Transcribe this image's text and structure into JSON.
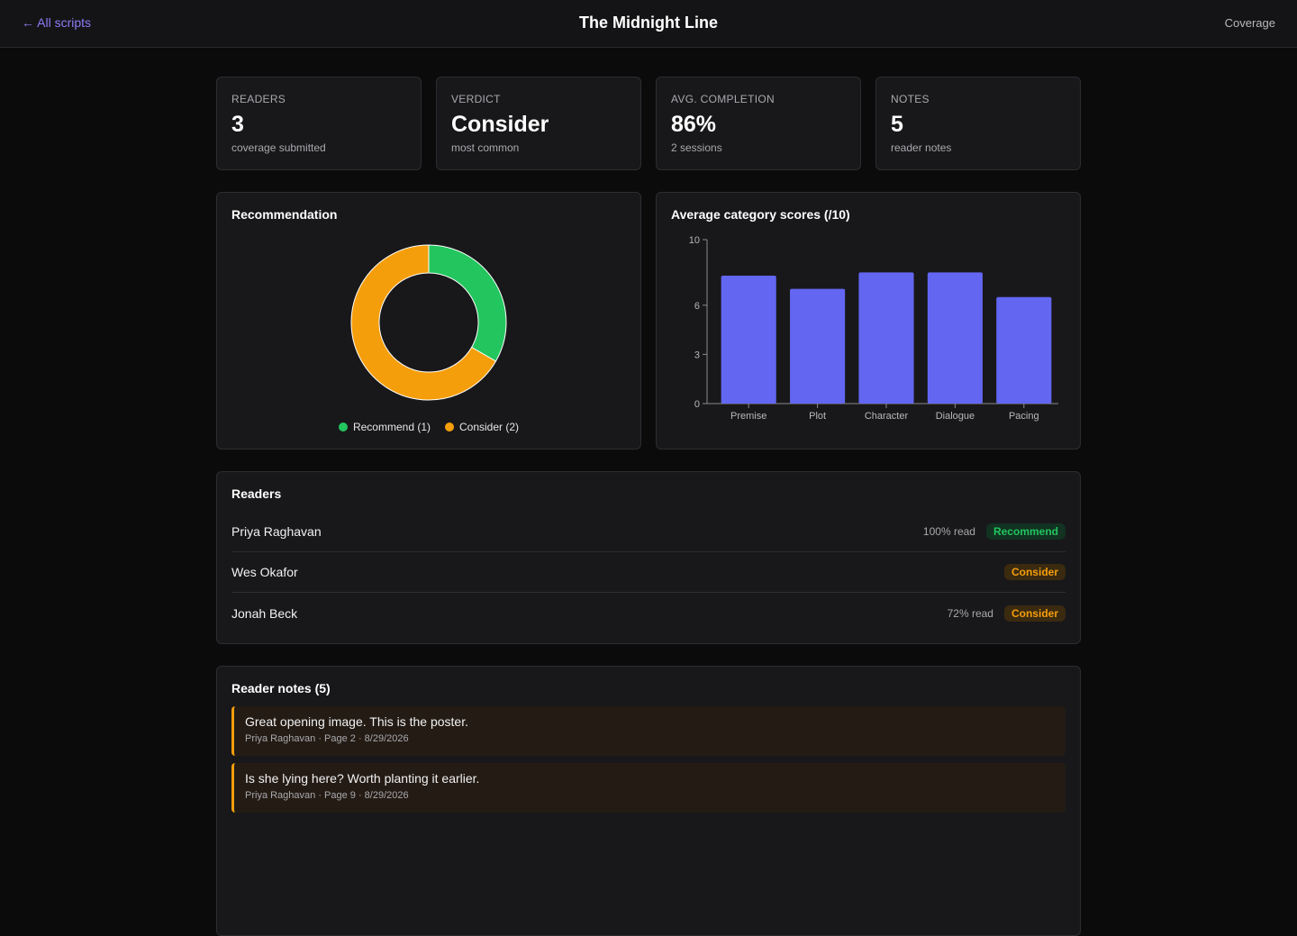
{
  "header": {
    "back_label": "← All scripts",
    "title": "The Midnight Line",
    "coverage_label": "Coverage"
  },
  "stats": [
    {
      "label": "READERS",
      "value": "3",
      "sub": "coverage submitted"
    },
    {
      "label": "VERDICT",
      "value": "Consider",
      "sub": "most common"
    },
    {
      "label": "AVG. COMPLETION",
      "value": "86%",
      "sub": "2 sessions"
    },
    {
      "label": "NOTES",
      "value": "5",
      "sub": "reader notes"
    }
  ],
  "recommendation": {
    "title": "Recommendation",
    "legend": [
      {
        "label": "Recommend (1)",
        "color": "#22c55e"
      },
      {
        "label": "Consider (2)",
        "color": "#f59e0b"
      }
    ]
  },
  "scores": {
    "title": "Average category scores (/10)"
  },
  "chart_data": [
    {
      "type": "pie",
      "title": "Recommendation",
      "categories": [
        "Recommend",
        "Consider"
      ],
      "values": [
        1,
        2
      ],
      "colors": [
        "#22c55e",
        "#f59e0b"
      ],
      "donut": true
    },
    {
      "type": "bar",
      "title": "Average category scores (/10)",
      "categories": [
        "Premise",
        "Plot",
        "Character",
        "Dialogue",
        "Pacing"
      ],
      "values": [
        7.8,
        7.0,
        8.0,
        8.0,
        6.5
      ],
      "yticks": [
        "0",
        "3",
        "6",
        "10"
      ],
      "ylim": [
        0,
        10
      ],
      "color": "#6366f1"
    }
  ],
  "readers": {
    "title": "Readers",
    "items": [
      {
        "name": "Priya Raghavan",
        "read": "100% read",
        "verdict": "Recommend"
      },
      {
        "name": "Wes Okafor",
        "read": "",
        "verdict": "Consider"
      },
      {
        "name": "Jonah Beck",
        "read": "72% read",
        "verdict": "Consider"
      }
    ]
  },
  "notes": {
    "title": "Reader notes (5)",
    "items": [
      {
        "text": "Great opening image. This is the poster.",
        "meta": "Priya Raghavan · Page 2 · 8/29/2026"
      },
      {
        "text": "Is she lying here? Worth planting it earlier.",
        "meta": "Priya Raghavan · Page 9 · 8/29/2026"
      }
    ]
  }
}
